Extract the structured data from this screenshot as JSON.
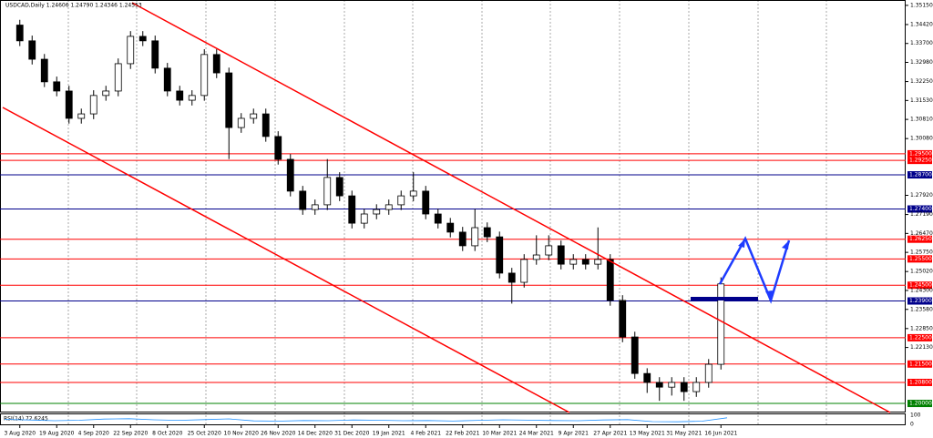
{
  "chart_data": {
    "type": "candlestick",
    "header": "USDCAD,Daily  1.24606 1.24790 1.24346 1.24553",
    "categories": [
      "3 Aug 2020",
      null,
      null,
      "19 Aug 2020",
      null,
      null,
      "4 Sep 2020",
      null,
      null,
      "22 Sep 2020",
      null,
      null,
      "8 Oct 2020",
      null,
      null,
      "25 Oct 2020",
      null,
      null,
      "10 Nov 2020",
      null,
      null,
      "26 Nov 2020",
      null,
      null,
      "14 Dec 2020",
      null,
      null,
      "31 Dec 2020",
      null,
      null,
      "19 Jan 2021",
      null,
      null,
      "4 Feb 2021",
      null,
      null,
      "22 Feb 2021",
      null,
      null,
      "10 Mar 2021",
      null,
      null,
      "24 Mar 2021",
      null,
      null,
      "9 Apr 2021",
      null,
      null,
      "27 Apr 2021",
      null,
      null,
      "13 May 2021",
      null,
      null,
      "31 May 2021",
      null,
      null,
      "16 Jun 2021"
    ],
    "open": [
      1.344,
      1.338,
      1.331,
      1.3224,
      1.3189,
      1.3085,
      1.3102,
      1.3172,
      1.3189,
      1.3293,
      1.3397,
      1.338,
      1.3276,
      1.3189,
      1.3154,
      1.3172,
      1.3328,
      1.3258,
      1.305,
      1.3085,
      1.3102,
      1.3016,
      1.2929,
      1.2808,
      1.2738,
      1.2756,
      1.286,
      1.279,
      1.2686,
      1.2721,
      1.2738,
      1.2756,
      1.279,
      1.2808,
      1.2721,
      1.2686,
      1.2652,
      1.26,
      1.2669,
      1.2634,
      1.2496,
      1.2461,
      1.2548,
      1.2565,
      1.26,
      1.253,
      1.2548,
      1.253,
      1.2548,
      1.2392,
      1.2253,
      1.2114,
      1.208,
      1.2062,
      1.208,
      1.2045,
      1.208,
      1.2149
    ],
    "high": [
      1.346,
      1.34,
      1.333,
      1.3244,
      1.3209,
      1.3122,
      1.3192,
      1.3209,
      1.3313,
      1.3417,
      1.3417,
      1.34,
      1.3296,
      1.3209,
      1.3192,
      1.3348,
      1.3348,
      1.3278,
      1.3105,
      1.3122,
      1.3122,
      1.3036,
      1.2949,
      1.2828,
      1.2776,
      1.293,
      1.288,
      1.281,
      1.2741,
      1.2758,
      1.2776,
      1.281,
      1.288,
      1.2828,
      1.2741,
      1.2706,
      1.2672,
      1.274,
      1.2689,
      1.2654,
      1.2516,
      1.2568,
      1.264,
      1.264,
      1.262,
      1.2568,
      1.2568,
      1.267,
      1.2568,
      1.2412,
      1.2273,
      1.2134,
      1.21,
      1.21,
      1.21,
      1.21,
      1.2169,
      1.248
    ],
    "low": [
      1.336,
      1.329,
      1.3204,
      1.3169,
      1.3065,
      1.3065,
      1.3082,
      1.3152,
      1.3169,
      1.3273,
      1.336,
      1.3256,
      1.3169,
      1.3134,
      1.3134,
      1.3152,
      1.3238,
      1.293,
      1.303,
      1.3065,
      1.2996,
      1.2909,
      1.2788,
      1.2718,
      1.2718,
      1.2736,
      1.277,
      1.2666,
      1.2666,
      1.2701,
      1.2718,
      1.2736,
      1.277,
      1.2701,
      1.2666,
      1.2632,
      1.258,
      1.258,
      1.2614,
      1.2476,
      1.238,
      1.2441,
      1.2528,
      1.2545,
      1.251,
      1.251,
      1.251,
      1.251,
      1.2372,
      1.2233,
      1.2094,
      1.204,
      1.201,
      1.203,
      1.201,
      1.2025,
      1.206,
      1.2129
    ],
    "close": [
      1.338,
      1.331,
      1.3224,
      1.3189,
      1.3085,
      1.3102,
      1.3172,
      1.3189,
      1.3293,
      1.3397,
      1.338,
      1.3276,
      1.3189,
      1.3154,
      1.3172,
      1.3328,
      1.3258,
      1.305,
      1.3085,
      1.3102,
      1.3016,
      1.2929,
      1.2808,
      1.2738,
      1.2756,
      1.286,
      1.279,
      1.2686,
      1.2721,
      1.2738,
      1.2756,
      1.279,
      1.2808,
      1.2721,
      1.2686,
      1.2652,
      1.26,
      1.2669,
      1.2634,
      1.2496,
      1.2461,
      1.2548,
      1.2565,
      1.26,
      1.253,
      1.2548,
      1.253,
      1.2548,
      1.2392,
      1.2253,
      1.2114,
      1.208,
      1.2062,
      1.208,
      1.2045,
      1.208,
      1.2149,
      1.2455
    ],
    "ylim": [
      1.1969,
      1.3525
    ],
    "yticks": [
      {
        "value": 1.3515,
        "label": "1.35150"
      },
      {
        "value": 1.3442,
        "label": "1.34420"
      },
      {
        "value": 1.337,
        "label": "1.33700"
      },
      {
        "value": 1.3298,
        "label": "1.32980"
      },
      {
        "value": 1.3225,
        "label": "1.32250"
      },
      {
        "value": 1.3153,
        "label": "1.31530"
      },
      {
        "value": 1.3081,
        "label": "1.30810"
      },
      {
        "value": 1.3008,
        "label": "1.30080"
      },
      {
        "value": 1.2792,
        "label": "1.27920"
      },
      {
        "value": 1.2719,
        "label": "1.27190"
      },
      {
        "value": 1.2647,
        "label": "1.26470"
      },
      {
        "value": 1.2575,
        "label": "1.25750"
      },
      {
        "value": 1.2502,
        "label": "1.25020"
      },
      {
        "value": 1.243,
        "label": "1.24300"
      },
      {
        "value": 1.2358,
        "label": "1.23580"
      },
      {
        "value": 1.2285,
        "label": "1.22850"
      },
      {
        "value": 1.2213,
        "label": "1.22130"
      }
    ],
    "levels": [
      {
        "value": 1.295,
        "label": "1.29500",
        "color": "#ff0000"
      },
      {
        "value": 1.2925,
        "label": "1.29250",
        "color": "#ff0000"
      },
      {
        "value": 1.287,
        "label": "1.28700",
        "color": "#00008b"
      },
      {
        "value": 1.274,
        "label": "1.27400",
        "color": "#00008b"
      },
      {
        "value": 1.2625,
        "label": "1.26250",
        "color": "#ff0000"
      },
      {
        "value": 1.255,
        "label": "1.25500",
        "color": "#ff0000"
      },
      {
        "value": 1.245,
        "label": "1.24500",
        "color": "#ff0000"
      },
      {
        "value": 1.239,
        "label": "1.23900",
        "color": "#00008b"
      },
      {
        "value": 1.225,
        "label": "1.22500",
        "color": "#ff0000"
      },
      {
        "value": 1.215,
        "label": "1.21500",
        "color": "#ff0000"
      },
      {
        "value": 1.208,
        "label": "1.20800",
        "color": "#ff0000"
      },
      {
        "value": 1.2,
        "label": "1.20000",
        "color": "#008000"
      }
    ],
    "rsi": {
      "label": "RSI(14) 72.6245",
      "color": "#1e90ff",
      "ylim": [
        0,
        100
      ],
      "yticks": [
        100,
        0
      ],
      "values": [
        55,
        48,
        40,
        45,
        58,
        62,
        50,
        44,
        52,
        60,
        38,
        35,
        42,
        40,
        48,
        45,
        40,
        42,
        36,
        44,
        50,
        46,
        42,
        40,
        48,
        52,
        30,
        28,
        35,
        72
      ]
    }
  }
}
